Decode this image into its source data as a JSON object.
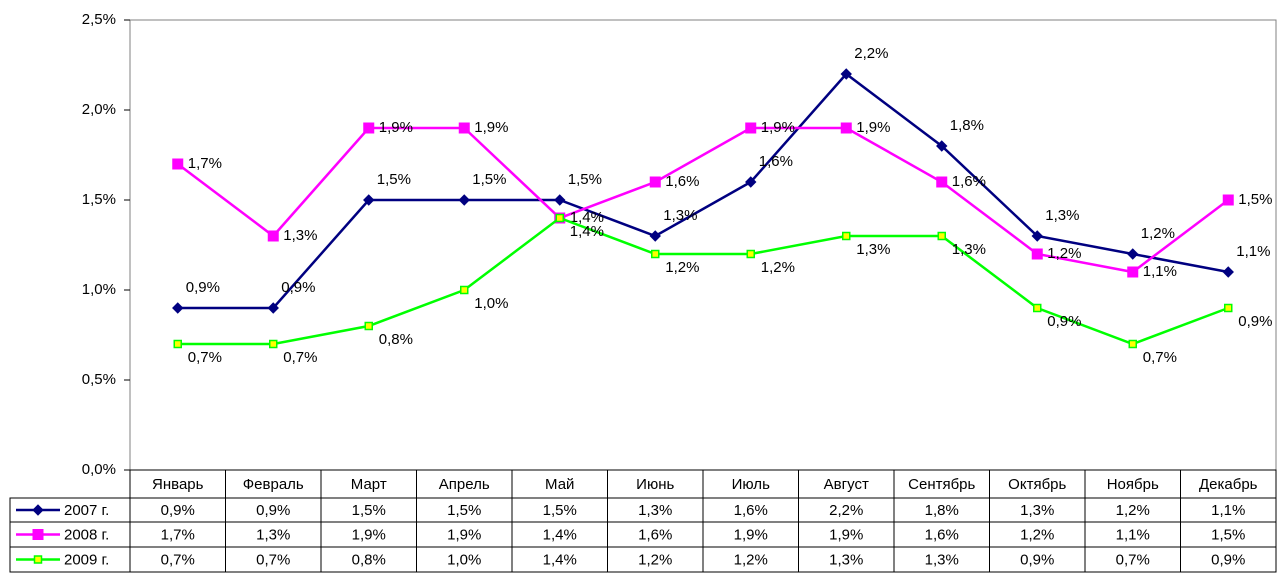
{
  "chart_data": {
    "type": "line",
    "categories": [
      "Январь",
      "Февраль",
      "Март",
      "Апрель",
      "Май",
      "Июнь",
      "Июль",
      "Август",
      "Сентябрь",
      "Октябрь",
      "Ноябрь",
      "Декабрь"
    ],
    "ylim": [
      0,
      2.5
    ],
    "yticks": [
      {
        "value": 0,
        "label": "0,0%"
      },
      {
        "value": 0.5,
        "label": "0,5%"
      },
      {
        "value": 1,
        "label": "1,0%"
      },
      {
        "value": 1.5,
        "label": "1,5%"
      },
      {
        "value": 2,
        "label": "2,0%"
      },
      {
        "value": 2.5,
        "label": "2,5%"
      }
    ],
    "series": [
      {
        "name": "2007 г.",
        "color": "#000080",
        "marker": "diamond",
        "marker_fill": "#000080",
        "values": [
          0.9,
          0.9,
          1.5,
          1.5,
          1.5,
          1.3,
          1.6,
          2.2,
          1.8,
          1.3,
          1.2,
          1.1
        ],
        "value_labels": [
          "0,9%",
          "0,9%",
          "1,5%",
          "1,5%",
          "1,5%",
          "1,3%",
          "1,6%",
          "2,2%",
          "1,8%",
          "1,3%",
          "1,2%",
          "1,1%"
        ]
      },
      {
        "name": "2008 г.",
        "color": "#ff00ff",
        "marker": "square",
        "marker_fill": "#ff00ff",
        "values": [
          1.7,
          1.3,
          1.9,
          1.9,
          1.4,
          1.6,
          1.9,
          1.9,
          1.6,
          1.2,
          1.1,
          1.5
        ],
        "value_labels": [
          "1,7%",
          "1,3%",
          "1,9%",
          "1,9%",
          "1,4%",
          "1,6%",
          "1,9%",
          "1,9%",
          "1,6%",
          "1,2%",
          "1,1%",
          "1,5%"
        ]
      },
      {
        "name": "2009 г.",
        "color": "#00ff00",
        "marker": "square-small",
        "marker_fill": "#ffff00",
        "values": [
          0.7,
          0.7,
          0.8,
          1.0,
          1.4,
          1.2,
          1.2,
          1.3,
          1.3,
          0.9,
          0.7,
          0.9
        ],
        "value_labels": [
          "0,7%",
          "0,7%",
          "0,8%",
          "1,0%",
          "1,4%",
          "1,2%",
          "1,2%",
          "1,3%",
          "1,3%",
          "0,9%",
          "0,7%",
          "0,9%"
        ]
      }
    ]
  }
}
